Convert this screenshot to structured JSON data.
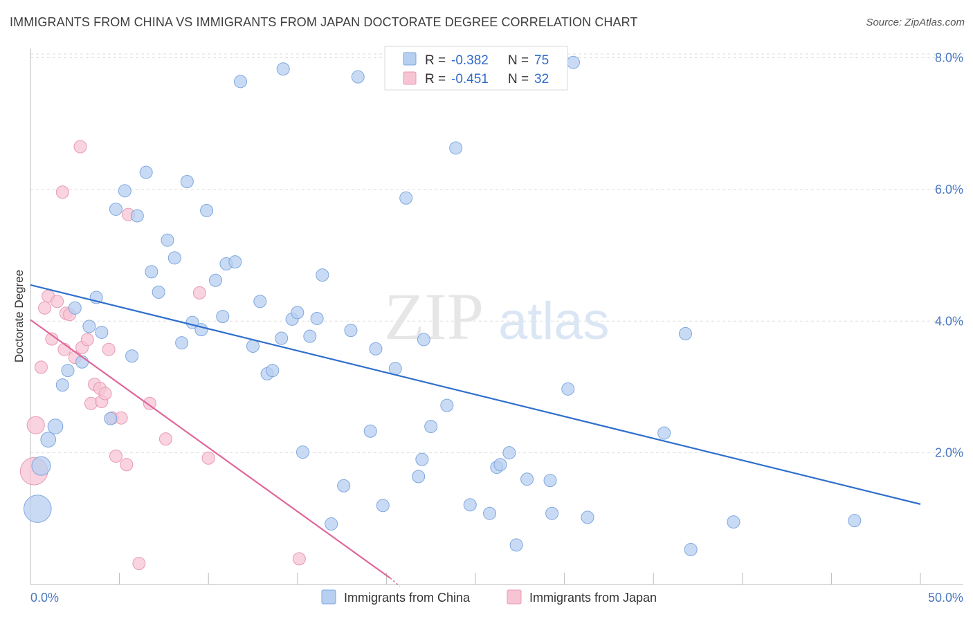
{
  "title": "IMMIGRANTS FROM CHINA VS IMMIGRANTS FROM JAPAN DOCTORATE DEGREE CORRELATION CHART",
  "source": "Source: ZipAtlas.com",
  "watermark": {
    "zip": "ZIP",
    "atlas": "atlas"
  },
  "colors": {
    "china_fill": "#b7cff0",
    "china_stroke": "#7ea7df",
    "china_line": "#2f6fcc",
    "japan_fill": "#f7c4d4",
    "japan_stroke": "#e89ab3",
    "japan_line": "#e0669a",
    "tick_text": "#4a78c2",
    "grid": "#dddddd"
  },
  "legend": {
    "r_label": "R =",
    "n_label": "N =",
    "china": {
      "r": "-0.382",
      "n": "75"
    },
    "japan": {
      "r": "-0.451",
      "n": "32"
    }
  },
  "chart_data": {
    "type": "scatter",
    "title": "IMMIGRANTS FROM CHINA VS IMMIGRANTS FROM JAPAN DOCTORATE DEGREE CORRELATION CHART",
    "xlabel": "",
    "ylabel": "Doctorate Degree",
    "xlim": [
      0,
      50
    ],
    "ylim": [
      0,
      8.3
    ],
    "x_tick_labels": [
      {
        "value": 0,
        "label": "0.0%"
      },
      {
        "value": 50,
        "label": "50.0%"
      }
    ],
    "y_tick_labels": [
      {
        "value": 2,
        "label": "2.0%"
      },
      {
        "value": 4,
        "label": "4.0%"
      },
      {
        "value": 6,
        "label": "6.0%"
      },
      {
        "value": 8,
        "label": "8.0%"
      }
    ],
    "grid": true,
    "legend_position": "top-center",
    "series": [
      {
        "name": "Immigrants from China",
        "trend": {
          "x": [
            0,
            50
          ],
          "y": [
            4.55,
            1.22
          ]
        },
        "points": [
          {
            "x": 0.4,
            "y": 1.15,
            "s": 2.2
          },
          {
            "x": 0.6,
            "y": 1.8,
            "s": 1.5
          },
          {
            "x": 1.0,
            "y": 2.2,
            "s": 1.2
          },
          {
            "x": 1.4,
            "y": 2.4,
            "s": 1.2
          },
          {
            "x": 1.8,
            "y": 3.03
          },
          {
            "x": 2.1,
            "y": 3.25
          },
          {
            "x": 2.9,
            "y": 3.38
          },
          {
            "x": 2.5,
            "y": 4.2
          },
          {
            "x": 3.3,
            "y": 3.92
          },
          {
            "x": 3.7,
            "y": 4.36
          },
          {
            "x": 4.0,
            "y": 3.83
          },
          {
            "x": 4.5,
            "y": 2.52
          },
          {
            "x": 5.7,
            "y": 3.47
          },
          {
            "x": 4.8,
            "y": 5.7
          },
          {
            "x": 5.3,
            "y": 5.98
          },
          {
            "x": 6.0,
            "y": 5.6
          },
          {
            "x": 6.5,
            "y": 6.26
          },
          {
            "x": 6.8,
            "y": 4.75
          },
          {
            "x": 7.2,
            "y": 4.44
          },
          {
            "x": 7.7,
            "y": 5.23
          },
          {
            "x": 8.1,
            "y": 4.96
          },
          {
            "x": 8.5,
            "y": 3.67
          },
          {
            "x": 8.8,
            "y": 6.12
          },
          {
            "x": 9.1,
            "y": 3.98
          },
          {
            "x": 9.6,
            "y": 3.87
          },
          {
            "x": 9.9,
            "y": 5.68
          },
          {
            "x": 10.4,
            "y": 4.62
          },
          {
            "x": 10.8,
            "y": 4.07
          },
          {
            "x": 11.0,
            "y": 4.87
          },
          {
            "x": 11.5,
            "y": 4.9
          },
          {
            "x": 11.8,
            "y": 7.64
          },
          {
            "x": 12.5,
            "y": 3.62
          },
          {
            "x": 12.9,
            "y": 4.3
          },
          {
            "x": 13.3,
            "y": 3.2
          },
          {
            "x": 13.6,
            "y": 3.25
          },
          {
            "x": 14.1,
            "y": 3.74
          },
          {
            "x": 14.2,
            "y": 7.83
          },
          {
            "x": 14.7,
            "y": 4.03
          },
          {
            "x": 15.0,
            "y": 4.13
          },
          {
            "x": 15.3,
            "y": 2.01
          },
          {
            "x": 15.7,
            "y": 3.77
          },
          {
            "x": 16.1,
            "y": 4.04
          },
          {
            "x": 16.4,
            "y": 4.7
          },
          {
            "x": 16.9,
            "y": 0.92
          },
          {
            "x": 17.6,
            "y": 1.5
          },
          {
            "x": 18.0,
            "y": 3.86
          },
          {
            "x": 18.4,
            "y": 7.71
          },
          {
            "x": 19.1,
            "y": 2.33
          },
          {
            "x": 19.4,
            "y": 3.58
          },
          {
            "x": 19.8,
            "y": 1.2
          },
          {
            "x": 20.5,
            "y": 3.28
          },
          {
            "x": 21.1,
            "y": 5.87
          },
          {
            "x": 21.8,
            "y": 1.64
          },
          {
            "x": 22.1,
            "y": 3.72
          },
          {
            "x": 22.0,
            "y": 1.9
          },
          {
            "x": 22.5,
            "y": 2.4
          },
          {
            "x": 23.4,
            "y": 2.72
          },
          {
            "x": 23.9,
            "y": 6.63
          },
          {
            "x": 24.7,
            "y": 1.21
          },
          {
            "x": 25.8,
            "y": 1.08
          },
          {
            "x": 26.2,
            "y": 1.78
          },
          {
            "x": 26.4,
            "y": 1.82
          },
          {
            "x": 26.9,
            "y": 2.0
          },
          {
            "x": 27.3,
            "y": 0.6
          },
          {
            "x": 27.9,
            "y": 1.6
          },
          {
            "x": 29.2,
            "y": 1.58
          },
          {
            "x": 29.3,
            "y": 1.08
          },
          {
            "x": 30.2,
            "y": 2.97
          },
          {
            "x": 30.5,
            "y": 7.93
          },
          {
            "x": 31.3,
            "y": 1.02
          },
          {
            "x": 35.6,
            "y": 2.3
          },
          {
            "x": 36.8,
            "y": 3.81
          },
          {
            "x": 37.1,
            "y": 0.53
          },
          {
            "x": 39.5,
            "y": 0.95
          },
          {
            "x": 46.3,
            "y": 0.97
          }
        ]
      },
      {
        "name": "Immigrants from Japan",
        "trend": {
          "x": [
            0,
            20.2
          ],
          "y": [
            4.02,
            0.1
          ]
        },
        "points": [
          {
            "x": 0.2,
            "y": 1.72,
            "s": 2.2
          },
          {
            "x": 0.3,
            "y": 2.42,
            "s": 1.4
          },
          {
            "x": 0.6,
            "y": 3.3
          },
          {
            "x": 0.8,
            "y": 4.2
          },
          {
            "x": 1.0,
            "y": 4.38
          },
          {
            "x": 1.2,
            "y": 3.73
          },
          {
            "x": 1.5,
            "y": 4.3
          },
          {
            "x": 1.8,
            "y": 5.96
          },
          {
            "x": 1.9,
            "y": 3.57
          },
          {
            "x": 2.0,
            "y": 4.12
          },
          {
            "x": 2.2,
            "y": 4.1
          },
          {
            "x": 2.5,
            "y": 3.45
          },
          {
            "x": 2.8,
            "y": 6.65
          },
          {
            "x": 2.9,
            "y": 3.6
          },
          {
            "x": 3.2,
            "y": 3.72
          },
          {
            "x": 3.4,
            "y": 2.75
          },
          {
            "x": 3.6,
            "y": 3.04
          },
          {
            "x": 3.9,
            "y": 2.98
          },
          {
            "x": 4.0,
            "y": 2.78
          },
          {
            "x": 4.2,
            "y": 2.9
          },
          {
            "x": 4.4,
            "y": 3.57
          },
          {
            "x": 4.6,
            "y": 2.53
          },
          {
            "x": 4.8,
            "y": 1.95
          },
          {
            "x": 5.1,
            "y": 2.53
          },
          {
            "x": 5.4,
            "y": 1.82
          },
          {
            "x": 5.5,
            "y": 5.62
          },
          {
            "x": 6.1,
            "y": 0.32
          },
          {
            "x": 6.7,
            "y": 2.75
          },
          {
            "x": 7.6,
            "y": 2.21
          },
          {
            "x": 9.5,
            "y": 4.43
          },
          {
            "x": 10.0,
            "y": 1.92
          },
          {
            "x": 15.1,
            "y": 0.39
          }
        ]
      }
    ]
  },
  "bottom_legend": {
    "china_label": "Immigrants from China",
    "japan_label": "Immigrants from Japan"
  }
}
